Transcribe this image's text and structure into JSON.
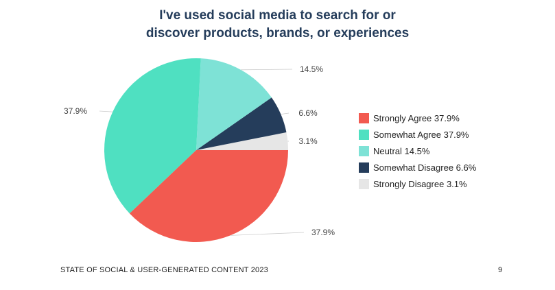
{
  "chart_data": {
    "type": "pie",
    "title": [
      "I've used social media to search for or",
      "discover products, brands, or experiences"
    ],
    "slices": [
      {
        "label": "Strongly Agree",
        "value": 37.9,
        "color": "#f25a50"
      },
      {
        "label": "Somewhat Agree",
        "value": 37.9,
        "color": "#4fe0c1"
      },
      {
        "label": "Neutral",
        "value": 14.5,
        "color": "#7ee2d6"
      },
      {
        "label": "Somewhat Disagree",
        "value": 6.6,
        "color": "#253d5b"
      },
      {
        "label": "Strongly Disagree",
        "value": 3.1,
        "color": "#e6e6e6"
      }
    ],
    "data_labels": [
      "37.9%",
      "37.9%",
      "14.5%",
      "6.6%",
      "3.1%"
    ],
    "legend": {
      "placement": "right",
      "entries": [
        "Strongly Agree 37.9%",
        "Somewhat Agree 37.9%",
        "Neutral 14.5%",
        "Somewhat Disagree 6.6%",
        "Strongly Disagree 3.1%"
      ]
    }
  },
  "footer": {
    "report_title": "STATE OF SOCIAL & USER-GENERATED CONTENT 2023",
    "page_number": "9"
  }
}
